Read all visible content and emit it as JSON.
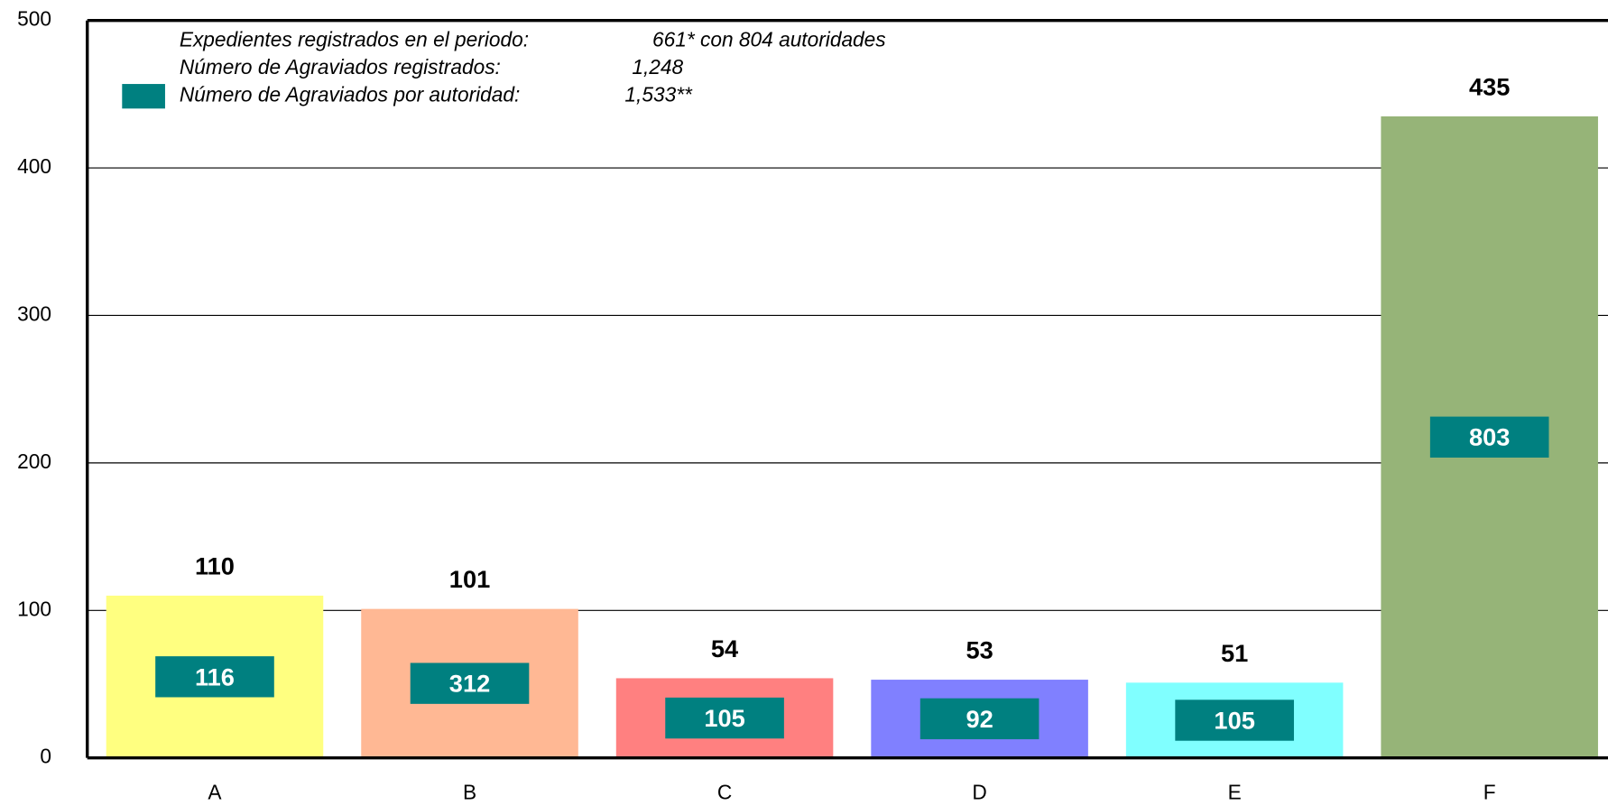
{
  "chart_data": {
    "type": "bar",
    "categories": [
      "A",
      "B",
      "C",
      "D",
      "E",
      "F"
    ],
    "values": [
      110,
      101,
      54,
      53,
      51,
      435
    ],
    "colors": [
      "#ffff80",
      "#ffb894",
      "#ff8080",
      "#8080ff",
      "#80ffff",
      "#96b478"
    ],
    "ylim": [
      0,
      500
    ],
    "yticks": [
      0,
      100,
      200,
      300,
      400,
      500
    ],
    "grid": true,
    "notes": [
      {
        "label": "Expedientes registrados en el periodo:",
        "value": "661* con 804 autoridades"
      },
      {
        "label": "Número de Agraviados registrados:",
        "value": "1,248"
      }
    ],
    "box_series": {
      "name": "Número de Agraviados por autoridad:",
      "total": "1,533**",
      "color": "#008080",
      "values": [
        116,
        312,
        105,
        92,
        105,
        803
      ]
    }
  }
}
